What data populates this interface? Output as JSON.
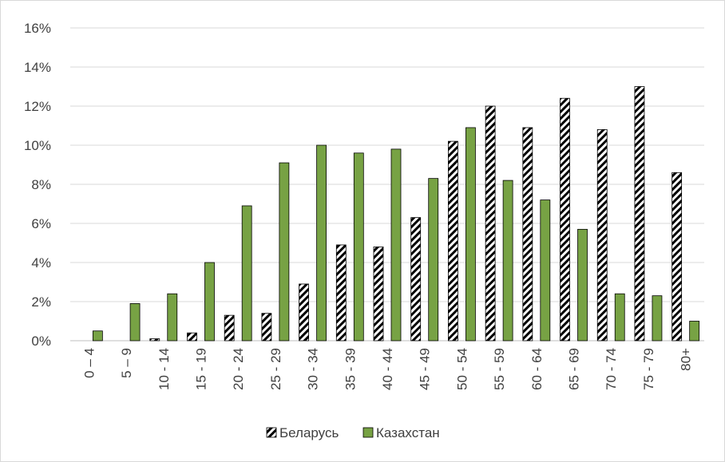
{
  "chart_data": {
    "type": "bar",
    "categories": [
      "0 – 4",
      "5 – 9",
      "10 - 14",
      "15 - 19",
      "20 - 24",
      "25 - 29",
      "30 - 34",
      "35 - 39",
      "40 - 44",
      "45 - 49",
      "50 - 54",
      "55 - 59",
      "60 - 64",
      "65 - 69",
      "70 - 74",
      "75 - 79",
      "80+"
    ],
    "series": [
      {
        "name": "Беларусь",
        "pattern": "diagonal-hatch",
        "color": "#000000",
        "values": [
          0.0,
          0.0,
          0.1,
          0.4,
          1.3,
          1.4,
          2.9,
          4.9,
          4.8,
          6.3,
          10.2,
          12.0,
          10.9,
          12.4,
          10.8,
          13.0,
          8.6
        ]
      },
      {
        "name": "Казахстан",
        "color": "#77a244",
        "values": [
          0.5,
          1.9,
          2.4,
          4.0,
          6.9,
          9.1,
          10.0,
          9.6,
          9.8,
          8.3,
          10.9,
          8.2,
          7.2,
          5.7,
          2.4,
          2.3,
          1.0
        ]
      }
    ],
    "y_ticks": [
      "0%",
      "2%",
      "4%",
      "6%",
      "8%",
      "10%",
      "12%",
      "14%",
      "16%"
    ],
    "ylim": [
      0,
      16
    ],
    "y_unit": "%",
    "grid": true,
    "legend_position": "bottom",
    "title": "",
    "xlabel": "",
    "ylabel": ""
  }
}
